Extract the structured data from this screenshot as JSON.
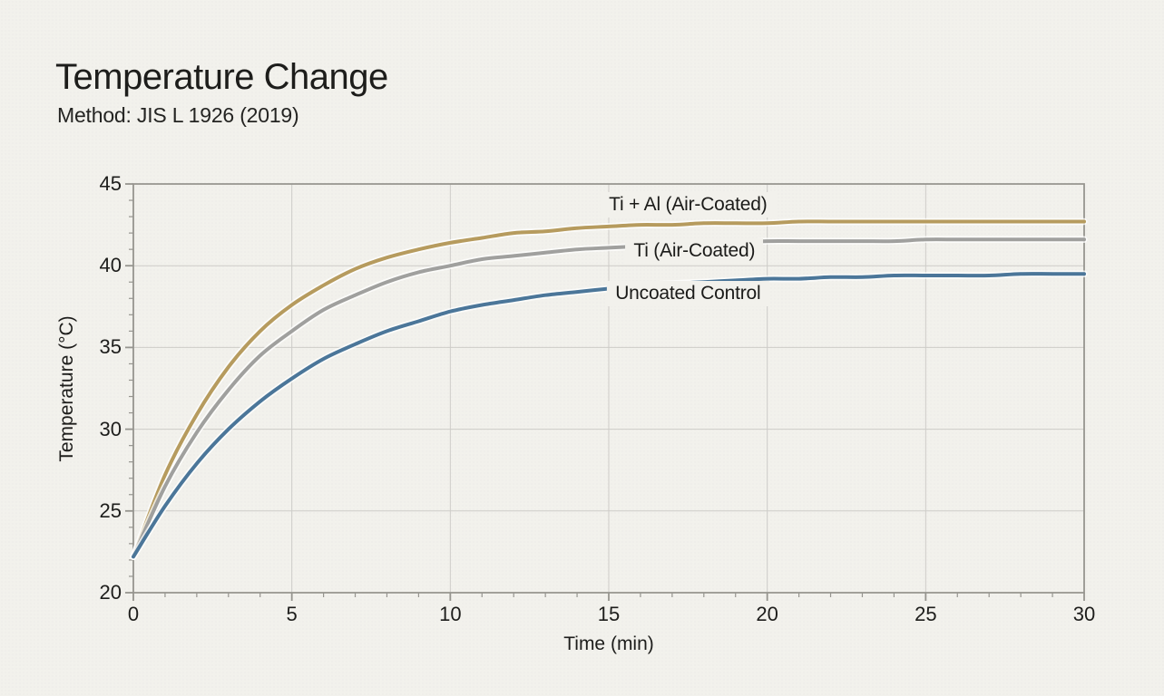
{
  "page": {
    "title": "Temperature Change",
    "subtitle": "Method: JIS L 1926 (2019)"
  },
  "colors": {
    "background": "#f2f1ec",
    "text": "#1d1d1b",
    "grid": "#cdccc8",
    "axis": "#96958f",
    "halo": "rgba(255,255,255,0.75)"
  },
  "chart_data": {
    "type": "line",
    "title": "Temperature Change",
    "subtitle": "Method: JIS L 1926 (2019)",
    "xlabel": "Time (min)",
    "ylabel": "Temperature (°C)",
    "xlim": [
      0,
      30
    ],
    "ylim": [
      20,
      45
    ],
    "xticks": [
      0,
      5,
      10,
      15,
      20,
      25,
      30
    ],
    "yticks": [
      20,
      25,
      30,
      35,
      40,
      45
    ],
    "minor_tick_interval": 1,
    "grid": true,
    "legend_position": "inline-annotations",
    "x": [
      0,
      1,
      2,
      3,
      4,
      5,
      6,
      7,
      8,
      9,
      10,
      11,
      12,
      13,
      14,
      15,
      16,
      17,
      18,
      19,
      20,
      21,
      22,
      23,
      24,
      25,
      26,
      27,
      28,
      29,
      30
    ],
    "series": [
      {
        "name": "Ti + Al (Air-Coated)",
        "color": "#b69b5e",
        "values": [
          22.2,
          27.2,
          30.9,
          33.8,
          36.0,
          37.6,
          38.8,
          39.8,
          40.5,
          41.0,
          41.4,
          41.7,
          42.0,
          42.1,
          42.3,
          42.4,
          42.5,
          42.5,
          42.6,
          42.6,
          42.6,
          42.7,
          42.7,
          42.7,
          42.7,
          42.7,
          42.7,
          42.7,
          42.7,
          42.7,
          42.7
        ]
      },
      {
        "name": "Ti (Air-Coated)",
        "color": "#a0a09e",
        "values": [
          22.2,
          26.5,
          29.8,
          32.4,
          34.5,
          36.0,
          37.3,
          38.2,
          39.0,
          39.6,
          40.0,
          40.4,
          40.6,
          40.8,
          41.0,
          41.1,
          41.2,
          41.3,
          41.4,
          41.4,
          41.5,
          41.5,
          41.5,
          41.5,
          41.5,
          41.6,
          41.6,
          41.6,
          41.6,
          41.6,
          41.6
        ]
      },
      {
        "name": "Uncoated Control",
        "color": "#4b7699",
        "values": [
          22.2,
          25.3,
          27.9,
          30.0,
          31.7,
          33.1,
          34.3,
          35.2,
          36.0,
          36.6,
          37.2,
          37.6,
          37.9,
          38.2,
          38.4,
          38.6,
          38.8,
          38.9,
          39.0,
          39.1,
          39.2,
          39.2,
          39.3,
          39.3,
          39.4,
          39.4,
          39.4,
          39.4,
          39.5,
          39.5,
          39.5
        ]
      }
    ],
    "annotations": [
      {
        "text": "Ti + Al (Air-Coated)",
        "x": 17.5,
        "y": 43.7
      },
      {
        "text": "Ti (Air-Coated)",
        "x": 17.7,
        "y": 40.9
      },
      {
        "text": "Uncoated Control",
        "x": 17.5,
        "y": 38.3
      }
    ]
  }
}
